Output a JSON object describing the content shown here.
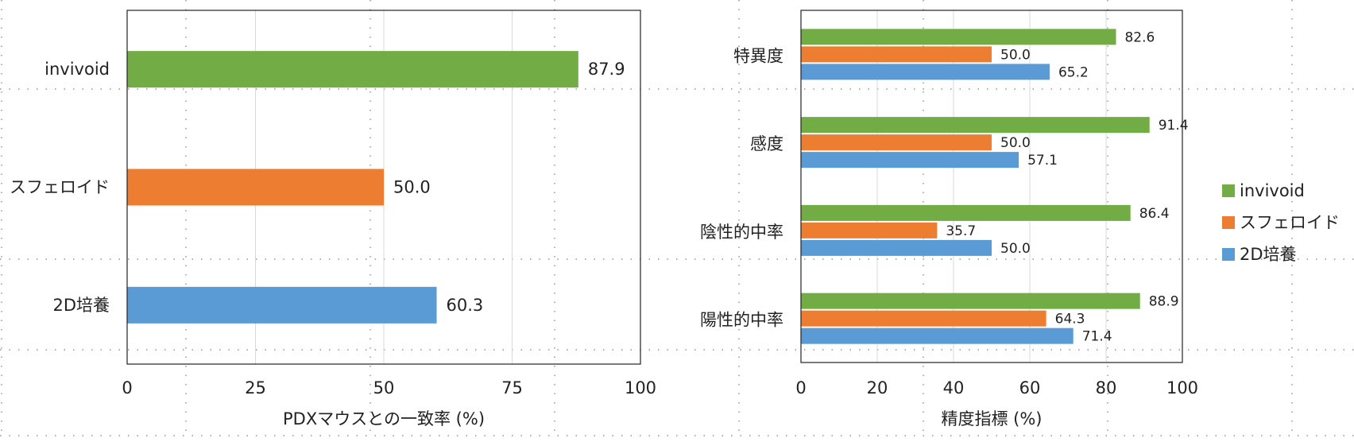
{
  "colors": {
    "invivoid": "#72ac44",
    "spheroid": "#ed7d31",
    "culture2d": "#5b9bd5",
    "gridline": "#d9d9d9",
    "frame": "#222222",
    "dotted": "#7f7f7f"
  },
  "chart_data": [
    {
      "type": "bar",
      "orientation": "horizontal",
      "categories": [
        "invivoid",
        "スフェロイド",
        "2D培養"
      ],
      "values": [
        87.9,
        50.0,
        60.3
      ],
      "value_labels": [
        "87.9",
        "50.0",
        "60.3"
      ],
      "xlabel": "PDXマウスとの一致率 (%)",
      "ylabel": "",
      "xlim": [
        0,
        100
      ],
      "xticks": [
        "0",
        "25",
        "50",
        "75",
        "100"
      ],
      "xtick_values": [
        0,
        25,
        50,
        75,
        100
      ],
      "grid": "vertical",
      "legend": "none"
    },
    {
      "type": "bar",
      "orientation": "horizontal",
      "categories": [
        "特異度",
        "感度",
        "陰性的中率",
        "陽性的中率"
      ],
      "series": [
        {
          "name": "invivoid",
          "values": [
            82.6,
            91.4,
            86.4,
            88.9
          ],
          "labels": [
            "82.6",
            "91.4",
            "86.4",
            "88.9"
          ]
        },
        {
          "name": "スフェロイド",
          "values": [
            50.0,
            50.0,
            35.7,
            64.3
          ],
          "labels": [
            "50.0",
            "50.0",
            "35.7",
            "64.3"
          ]
        },
        {
          "name": "2D培養",
          "values": [
            65.2,
            57.1,
            50.0,
            71.4
          ],
          "labels": [
            "65.2",
            "57.1",
            "50.0",
            "71.4"
          ]
        }
      ],
      "xlabel": "精度指標 (%)",
      "ylabel": "",
      "xlim": [
        0,
        100
      ],
      "xticks": [
        "0",
        "20",
        "40",
        "60",
        "80",
        "100"
      ],
      "xtick_values": [
        0,
        20,
        40,
        60,
        80,
        100
      ],
      "grid": "vertical",
      "legend": "right"
    }
  ]
}
